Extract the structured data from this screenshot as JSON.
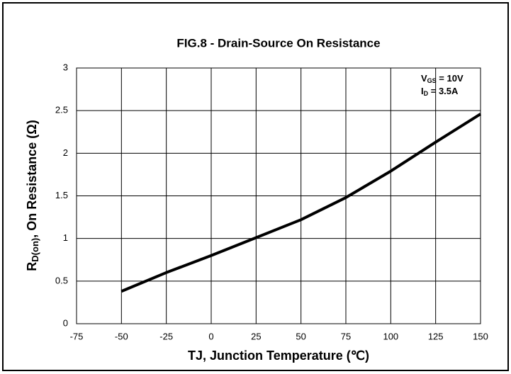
{
  "chart_data": {
    "type": "line",
    "title": "FIG.8 - Drain-Source On Resistance",
    "x_label": "TJ,  Junction Temperature (℃)",
    "y_label": [
      "R",
      "D(on)",
      ", On Resistance (Ω)"
    ],
    "annotations": [
      [
        "V",
        "GS",
        " = 10V"
      ],
      [
        "I",
        "D",
        " = 3.5A"
      ]
    ],
    "x": [
      -50,
      -25,
      0,
      25,
      50,
      75,
      100,
      125,
      150
    ],
    "series": [
      {
        "name": "RDS(on)",
        "color": "#000000",
        "values": [
          0.38,
          0.6,
          0.8,
          1.01,
          1.22,
          1.48,
          1.79,
          2.13,
          2.46
        ]
      }
    ],
    "xlim": [
      -75,
      150
    ],
    "xticks": [
      -75,
      -50,
      -25,
      0,
      25,
      50,
      75,
      100,
      125,
      150
    ],
    "ylim": [
      0,
      3
    ],
    "yticks": [
      0,
      0.5,
      1,
      1.5,
      2,
      2.5,
      3
    ],
    "grid": true
  }
}
